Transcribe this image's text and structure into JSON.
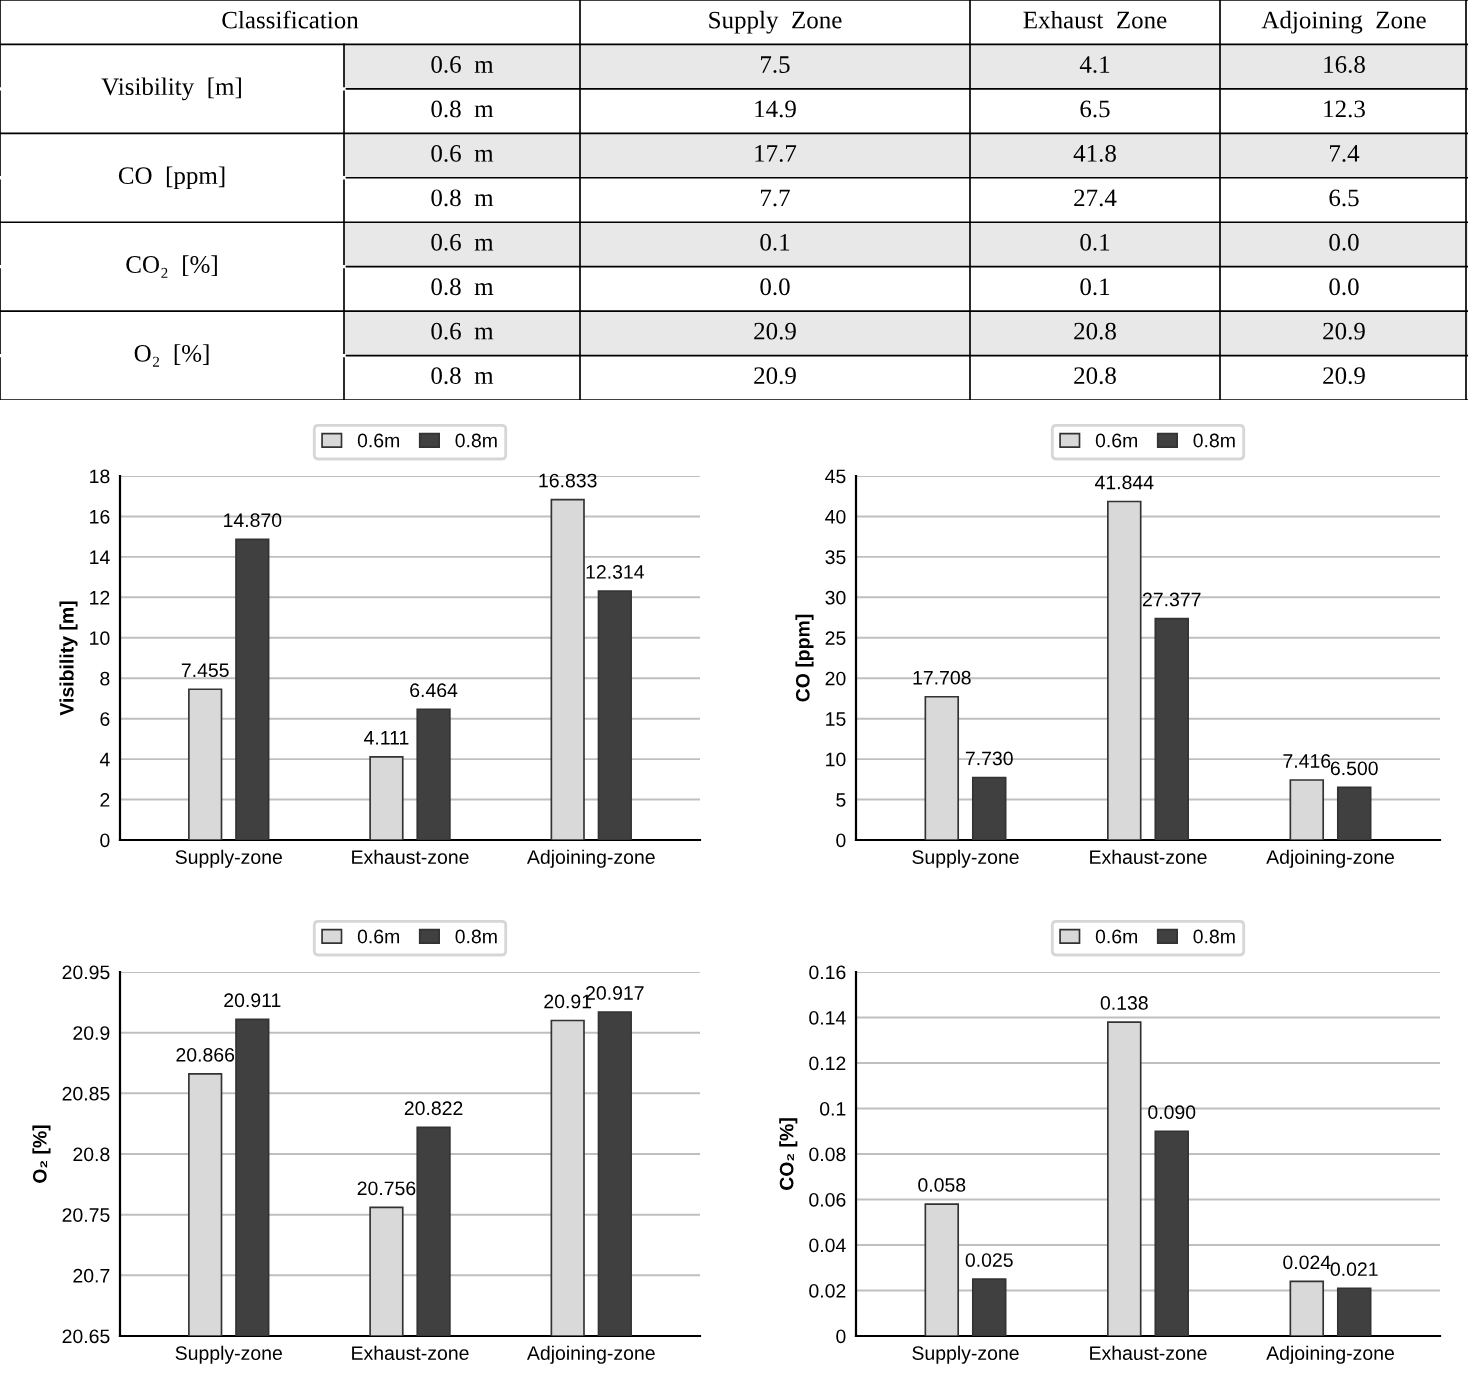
{
  "chart_data": [
    {
      "type": "other",
      "annotations": [
        "Classification",
        "Supply  Zone",
        "Exhaust  Zone",
        "Adjoining  Zone",
        "Visibility  [m]",
        "0.6  m",
        "7.5",
        "4.1",
        "16.8",
        "0.8  m",
        "14.9",
        "6.5",
        "12.3",
        "CO  [ppm]",
        "0.6  m",
        "17.7",
        "41.8",
        "7.4",
        "0.8  m",
        "7.7",
        "27.4",
        "6.5",
        "CO₂  [%]",
        "0.6  m",
        "0.1",
        "0.1",
        "0.0",
        "0.8  m",
        "0.0",
        "0.1",
        "0.0",
        "O₂  [%]",
        "0.6  m",
        "20.9",
        "20.8",
        "20.9",
        "0.8  m",
        "20.9",
        "20.8",
        "20.9"
      ]
    },
    {
      "type": "bar",
      "categories": [
        "Supply-zone",
        "Exhaust-zone",
        "Adjoining-zone"
      ],
      "ylabel": "Visibility [m]",
      "ylim": [
        0,
        18
      ],
      "yticks": [
        0,
        2,
        4,
        6,
        8,
        10,
        12,
        14,
        16,
        18
      ],
      "grid": "y",
      "legend": "top",
      "series": [
        {
          "name": "0.6m",
          "color": "#d9d9d9",
          "values": [
            7.455,
            4.111,
            16.833
          ],
          "value_labels": [
            "7.455",
            "4.111",
            "16.833"
          ]
        },
        {
          "name": "0.8m",
          "color": "#404040",
          "values": [
            14.87,
            6.464,
            12.314
          ],
          "value_labels": [
            "14.870",
            "6.464",
            "12.314"
          ]
        }
      ]
    },
    {
      "type": "bar",
      "categories": [
        "Supply-zone",
        "Exhaust-zone",
        "Adjoining-zone"
      ],
      "ylabel": "CO [ppm]",
      "ylim": [
        0,
        45
      ],
      "yticks": [
        0,
        5,
        10,
        15,
        20,
        25,
        30,
        35,
        40,
        45
      ],
      "grid": "y",
      "legend": "top",
      "series": [
        {
          "name": "0.6m",
          "color": "#d9d9d9",
          "values": [
            17.708,
            41.844,
            7.416
          ],
          "value_labels": [
            "17.708",
            "41.844",
            "7.416"
          ]
        },
        {
          "name": "0.8m",
          "color": "#404040",
          "values": [
            7.73,
            27.377,
            6.5
          ],
          "value_labels": [
            "7.730",
            "27.377",
            "6.500"
          ]
        }
      ]
    },
    {
      "type": "bar",
      "categories": [
        "Supply-zone",
        "Exhaust-zone",
        "Adjoining-zone"
      ],
      "ylabel": "O₂ [%]",
      "ylim": [
        20.65,
        20.95
      ],
      "yticks": [
        20.65,
        {
          "value": 20.7,
          "label": "20.7"
        },
        20.75,
        {
          "value": 20.8,
          "label": "20.8"
        },
        20.85,
        {
          "value": 20.9,
          "label": "20.9"
        },
        20.95
      ],
      "grid": "y",
      "legend": "top",
      "series": [
        {
          "name": "0.6m",
          "color": "#d9d9d9",
          "values": [
            20.866,
            20.756,
            20.91
          ],
          "value_labels": [
            "20.866",
            "20.756",
            "20.91"
          ]
        },
        {
          "name": "0.8m",
          "color": "#404040",
          "values": [
            20.911,
            20.822,
            20.917
          ],
          "value_labels": [
            "20.911",
            "20.822",
            "20.917"
          ]
        }
      ]
    },
    {
      "type": "bar",
      "categories": [
        "Supply-zone",
        "Exhaust-zone",
        "Adjoining-zone"
      ],
      "ylabel": "CO₂ [%]",
      "ylim": [
        0,
        0.16
      ],
      "yticks": [
        0,
        0.02,
        0.04,
        0.06,
        0.08,
        {
          "value": 0.1,
          "label": "0.1"
        },
        0.12,
        0.14,
        0.16
      ],
      "grid": "y",
      "legend": "top",
      "series": [
        {
          "name": "0.6m",
          "color": "#d9d9d9",
          "values": [
            0.058,
            0.138,
            0.024
          ],
          "value_labels": [
            "0.058",
            "0.138",
            "0.024"
          ]
        },
        {
          "name": "0.8m",
          "color": "#404040",
          "values": [
            0.025,
            0.09,
            0.021
          ],
          "value_labels": [
            "0.025",
            "0.090",
            "0.021"
          ]
        }
      ]
    }
  ]
}
